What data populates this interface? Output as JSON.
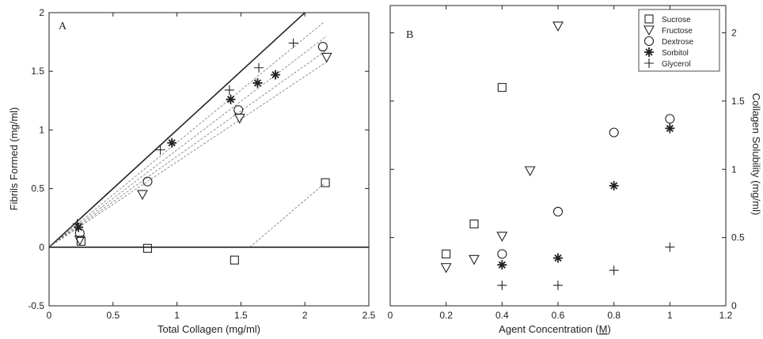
{
  "chart_data": [
    {
      "type": "scatter",
      "panel_label": "A",
      "xlabel": "Total Collagen  (mg/ml)",
      "ylabel": "Fibrils Formed  (mg/ml)",
      "xlim": [
        0,
        2.5
      ],
      "ylim": [
        -0.5,
        2
      ],
      "xticks": [
        "0",
        "0.5",
        "1",
        "1.5",
        "2",
        "2.5"
      ],
      "yticks": [
        "-0.5",
        "0",
        "0.5",
        "1",
        "1.5",
        "2"
      ],
      "series": [
        {
          "marker": "square",
          "points": [
            [
              0.25,
              0.05
            ],
            [
              0.77,
              -0.01
            ],
            [
              1.45,
              -0.11
            ],
            [
              2.16,
              0.55
            ]
          ]
        },
        {
          "marker": "triangle",
          "points": [
            [
              0.24,
              0.06
            ],
            [
              0.73,
              0.45
            ],
            [
              1.49,
              1.1
            ],
            [
              2.17,
              1.62
            ]
          ]
        },
        {
          "marker": "circle",
          "points": [
            [
              0.24,
              0.12
            ],
            [
              0.77,
              0.56
            ],
            [
              1.48,
              1.17
            ],
            [
              2.14,
              1.71
            ]
          ]
        },
        {
          "marker": "star",
          "points": [
            [
              0.23,
              0.17
            ],
            [
              0.96,
              0.89
            ],
            [
              1.42,
              1.26
            ],
            [
              1.63,
              1.4
            ],
            [
              1.77,
              1.47
            ]
          ]
        },
        {
          "marker": "plus",
          "points": [
            [
              0.22,
              0.2
            ],
            [
              0.87,
              0.83
            ],
            [
              1.41,
              1.34
            ],
            [
              1.64,
              1.53
            ],
            [
              1.91,
              1.74
            ]
          ]
        }
      ],
      "lines": [
        {
          "style": "solid",
          "points": [
            [
              0,
              0
            ],
            [
              2.0,
              2.0
            ]
          ]
        },
        {
          "style": "dashed",
          "points": [
            [
              0,
              0
            ],
            [
              2.15,
              1.92
            ]
          ]
        },
        {
          "style": "dashed",
          "points": [
            [
              0,
              0
            ],
            [
              2.17,
              1.8
            ]
          ]
        },
        {
          "style": "dashed",
          "points": [
            [
              0,
              0
            ],
            [
              2.17,
              1.68
            ]
          ]
        },
        {
          "style": "dashed",
          "points": [
            [
              0,
              0
            ],
            [
              2.17,
              1.58
            ]
          ]
        },
        {
          "style": "dashed",
          "points": [
            [
              1.57,
              0
            ],
            [
              2.16,
              0.55
            ]
          ]
        },
        {
          "style": "solid",
          "points": [
            [
              0,
              0
            ],
            [
              2.5,
              0
            ]
          ]
        }
      ]
    },
    {
      "type": "scatter",
      "panel_label": "B",
      "xlabel": "Agent Concentration (",
      "xlabel_unit": "M",
      "xlabel_close": ")",
      "ylabel": "Collagen Solubility (mg/ml)",
      "xlim": [
        0,
        1.2
      ],
      "ylim": [
        0,
        2.2
      ],
      "xticks": [
        "0",
        "0.2",
        "0.4",
        "0.6",
        "0.8",
        "1",
        "1.2"
      ],
      "yticks": [
        "0",
        "0.5",
        "1",
        "1.5",
        "2"
      ],
      "legend_position": "top-right",
      "series": [
        {
          "name": "Sucrose",
          "marker": "square",
          "points": [
            [
              0.2,
              0.38
            ],
            [
              0.3,
              0.6
            ],
            [
              0.4,
              1.6
            ]
          ]
        },
        {
          "name": "Fructose",
          "marker": "triangle",
          "points": [
            [
              0.2,
              0.28
            ],
            [
              0.3,
              0.34
            ],
            [
              0.4,
              0.51
            ],
            [
              0.5,
              0.99
            ],
            [
              0.6,
              2.05
            ]
          ]
        },
        {
          "name": "Dextrose",
          "marker": "circle",
          "points": [
            [
              0.4,
              0.38
            ],
            [
              0.6,
              0.69
            ],
            [
              0.8,
              1.27
            ],
            [
              1.0,
              1.37
            ]
          ]
        },
        {
          "name": "Sorbitol",
          "marker": "star",
          "points": [
            [
              0.4,
              0.3
            ],
            [
              0.6,
              0.35
            ],
            [
              0.8,
              0.88
            ],
            [
              1.0,
              1.3
            ]
          ]
        },
        {
          "name": "Glycerol",
          "marker": "plus",
          "points": [
            [
              0.4,
              0.15
            ],
            [
              0.6,
              0.15
            ],
            [
              0.8,
              0.26
            ],
            [
              1.0,
              0.43
            ]
          ]
        }
      ]
    }
  ]
}
